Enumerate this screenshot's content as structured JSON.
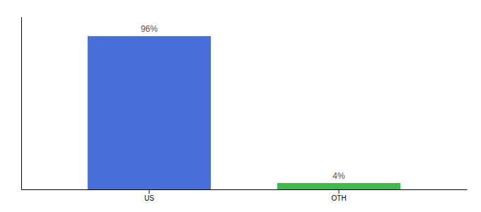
{
  "chart_data": {
    "type": "bar",
    "categories": [
      "US",
      "OTH"
    ],
    "values": [
      96,
      4
    ],
    "value_labels": [
      "96%",
      "4%"
    ],
    "colors": [
      "#4a6fdb",
      "#3dba4e"
    ],
    "ylim": [
      0,
      108
    ],
    "yticks": [],
    "tick_labels": "x",
    "data_labels": true
  }
}
